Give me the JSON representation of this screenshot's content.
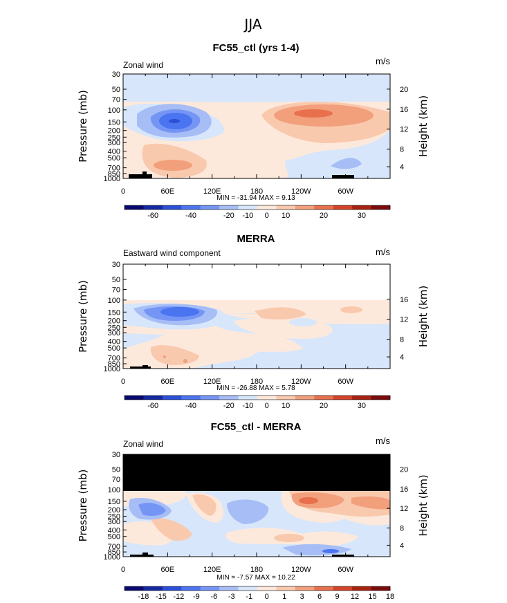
{
  "figure_title": "JJA",
  "chart_data": [
    {
      "type": "heatmap",
      "title": "FC55_ctl (yrs 1-4)",
      "left_label": "Zonal wind",
      "units": "m/s",
      "ylabel": "Pressure (mb)",
      "ylabel2": "Height (km)",
      "pressure_ticks": [
        "30",
        "50",
        "70",
        "100",
        "150",
        "200",
        "250",
        "300",
        "400",
        "500",
        "700",
        "850",
        "1000"
      ],
      "height_ticks": [
        "20",
        "16",
        "12",
        "8",
        "4"
      ],
      "x_ticks": [
        "0",
        "60E",
        "120E",
        "180",
        "120W",
        "60W"
      ],
      "xlim": [
        0,
        360
      ],
      "ylim_mb": [
        1000,
        30
      ],
      "stats": "MIN = -31.94   MAX =   9.13",
      "colorbar_labels": [
        "-60",
        "-40",
        "-20",
        "-10",
        "0",
        "10",
        "20",
        "30"
      ],
      "colorbar_colors": [
        "#08086e",
        "#1428a0",
        "#2c4fd8",
        "#4a74f0",
        "#7595f5",
        "#a6bdf6",
        "#d7e6fa",
        "#fde9dc",
        "#f9c9ae",
        "#f29f7c",
        "#e8704d",
        "#d44328",
        "#a82210",
        "#7a0c0c"
      ],
      "features": [
        {
          "lon": 80,
          "p": 155,
          "value": -31.9
        },
        {
          "lon": 250,
          "p": 160,
          "value": 9.1
        },
        {
          "lon": 55,
          "p": 650,
          "value": 7
        }
      ]
    },
    {
      "type": "heatmap",
      "title": "MERRA",
      "left_label": "Eastward wind component",
      "units": "m/s",
      "ylabel": "Pressure (mb)",
      "ylabel2": "Height (km)",
      "pressure_ticks": [
        "30",
        "50",
        "70",
        "100",
        "150",
        "200",
        "250",
        "300",
        "400",
        "500",
        "700",
        "850",
        "1000"
      ],
      "height_ticks": [
        "16",
        "12",
        "8",
        "4"
      ],
      "x_ticks": [
        "0",
        "60E",
        "120E",
        "180",
        "120W",
        "60W"
      ],
      "xlim": [
        0,
        360
      ],
      "ylim_mb": [
        1000,
        30
      ],
      "data_top_mb": 100,
      "stats": "MIN = -26.88   MAX =   5.78",
      "colorbar_labels": [
        "-60",
        "-40",
        "-20",
        "-10",
        "0",
        "10",
        "20",
        "30"
      ],
      "colorbar_colors": [
        "#08086e",
        "#1428a0",
        "#2c4fd8",
        "#4a74f0",
        "#7595f5",
        "#a6bdf6",
        "#d7e6fa",
        "#fde9dc",
        "#f9c9ae",
        "#f29f7c",
        "#e8704d",
        "#d44328",
        "#a82210",
        "#7a0c0c"
      ],
      "features": [
        {
          "lon": 85,
          "p": 155,
          "value": -26.9
        },
        {
          "lon": 230,
          "p": 150,
          "value": 5.8
        }
      ]
    },
    {
      "type": "heatmap",
      "title": "FC55_ctl - MERRA",
      "left_label": "Zonal wind",
      "units": "m/s",
      "ylabel": "Pressure (mb)",
      "ylabel2": "Height (km)",
      "pressure_ticks": [
        "30",
        "50",
        "70",
        "100",
        "150",
        "200",
        "250",
        "300",
        "400",
        "500",
        "700",
        "850",
        "1000"
      ],
      "height_ticks": [
        "20",
        "16",
        "12",
        "8",
        "4"
      ],
      "x_ticks": [
        "0",
        "60E",
        "120E",
        "180",
        "120W",
        "60W"
      ],
      "xlim": [
        0,
        360
      ],
      "ylim_mb": [
        1000,
        30
      ],
      "masked_above_mb": 100,
      "stats": "MIN =  -7.57   MAX =  10.22",
      "colorbar_labels": [
        "-18",
        "-15",
        "-12",
        "-9",
        "-6",
        "-3",
        "-1",
        "0",
        "1",
        "3",
        "6",
        "9",
        "12",
        "15",
        "18"
      ],
      "colorbar_colors": [
        "#08086e",
        "#1428a0",
        "#2c4fd8",
        "#4a74f0",
        "#7595f5",
        "#a6bdf6",
        "#d7e6fa",
        "#fde9dc",
        "#f9c9ae",
        "#f29f7c",
        "#e8704d",
        "#d44328",
        "#a82210",
        "#7a0c0c"
      ],
      "features": [
        {
          "lon": 250,
          "p": 150,
          "value": 10.2
        },
        {
          "lon": 320,
          "p": 860,
          "value": -7.6
        }
      ]
    }
  ]
}
